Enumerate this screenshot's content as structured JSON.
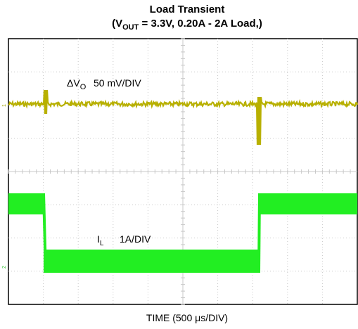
{
  "title": {
    "line1": "Load Transient",
    "line2_prefix": "(V",
    "line2_sub": "OUT",
    "line2_suffix": " = 3.3V, 0.20A - 2A Load,)"
  },
  "traces": [
    {
      "symbol": "ΔV",
      "symbol_sub": "O",
      "scale": "50 mV/DIV",
      "marker": "1"
    },
    {
      "symbol": "I",
      "symbol_sub": "L",
      "scale": "1A/DIV",
      "marker": "2"
    }
  ],
  "x_axis_label": "TIME (500 μs/DIV)"
}
